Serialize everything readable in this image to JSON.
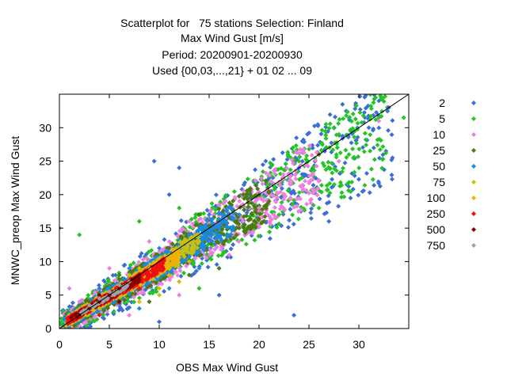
{
  "chart_data": {
    "type": "scatter",
    "title_lines": [
      "Scatterplot for   75 stations Selection: Finland",
      "Max Wind Gust [m/s]",
      "Period: 20200901-20200930",
      "Used {00,03,...,21} + 01 02 ... 09"
    ],
    "xlabel": "OBS Max Wind Gust",
    "ylabel": "MNWC_preop Max Wind Gust",
    "xlim": [
      0,
      35
    ],
    "ylim": [
      0,
      35
    ],
    "x_ticks": [
      0,
      5,
      10,
      15,
      20,
      25,
      30
    ],
    "y_ticks": [
      0,
      5,
      10,
      15,
      20,
      25,
      30
    ],
    "grid": false,
    "diagonal_line": true,
    "legend_position": "right",
    "series": [
      {
        "name": "2",
        "color": "#3b6fd6",
        "points": [
          [
            33,
            33
          ],
          [
            31,
            30
          ],
          [
            27,
            16
          ],
          [
            24,
            24
          ],
          [
            16,
            5
          ],
          [
            10,
            1
          ],
          [
            23.5,
            2
          ],
          [
            11,
            20
          ],
          [
            12,
            24
          ],
          [
            9.5,
            25
          ]
        ]
      },
      {
        "name": "5",
        "color": "#22c522",
        "points": [
          [
            34.5,
            31.5
          ],
          [
            32,
            31.5
          ],
          [
            28,
            29
          ],
          [
            24,
            25
          ],
          [
            20,
            20
          ],
          [
            17,
            13
          ],
          [
            12,
            18
          ],
          [
            8,
            16
          ],
          [
            2,
            14
          ],
          [
            0,
            15
          ],
          [
            3,
            1
          ],
          [
            14,
            6
          ],
          [
            22,
            17
          ],
          [
            26,
            18
          ],
          [
            29,
            26
          ]
        ]
      },
      {
        "name": "10",
        "color": "#ef7fe0",
        "points": [
          [
            32,
            31
          ],
          [
            28,
            25
          ],
          [
            23,
            22
          ],
          [
            20,
            18
          ],
          [
            17,
            11
          ],
          [
            13,
            16
          ],
          [
            9,
            13
          ],
          [
            5,
            9
          ],
          [
            2,
            4
          ],
          [
            1,
            6
          ],
          [
            7,
            2
          ],
          [
            12,
            5
          ],
          [
            18,
            17
          ],
          [
            26,
            22
          ]
        ]
      },
      {
        "name": "25",
        "color": "#4a7a10",
        "points": [
          [
            26,
            26
          ],
          [
            21,
            19
          ],
          [
            18,
            15
          ],
          [
            14,
            17
          ],
          [
            11,
            12
          ],
          [
            6,
            8
          ],
          [
            3,
            4
          ],
          [
            9,
            4
          ],
          [
            13,
            8
          ],
          [
            16,
            9
          ],
          [
            20,
            20
          ]
        ]
      },
      {
        "name": "50",
        "color": "#1a8ae0",
        "points": [
          [
            18,
            17
          ],
          [
            15,
            17
          ],
          [
            13,
            14
          ],
          [
            10,
            12
          ],
          [
            7,
            9
          ],
          [
            4,
            6
          ],
          [
            2,
            2
          ],
          [
            8,
            3
          ],
          [
            11,
            6
          ],
          [
            14,
            9
          ],
          [
            16,
            15
          ]
        ]
      },
      {
        "name": "75",
        "color": "#c8c010",
        "points": [
          [
            14,
            13
          ],
          [
            13,
            10
          ],
          [
            11,
            11
          ],
          [
            9,
            9
          ],
          [
            7,
            8
          ],
          [
            4,
            3
          ],
          [
            10,
            5
          ],
          [
            12,
            7
          ]
        ]
      },
      {
        "name": "100",
        "color": "#f5b000",
        "points": [
          [
            12,
            11
          ],
          [
            10,
            9
          ],
          [
            8,
            9
          ],
          [
            6,
            6
          ],
          [
            3,
            3
          ],
          [
            8,
            4
          ],
          [
            10,
            6
          ],
          [
            11,
            8
          ]
        ]
      },
      {
        "name": "250",
        "color": "#ee1010",
        "points": [
          [
            10,
            9
          ],
          [
            9,
            8
          ],
          [
            7,
            7
          ],
          [
            5,
            5
          ],
          [
            3,
            3
          ],
          [
            1.5,
            1.5
          ],
          [
            6,
            4
          ],
          [
            8,
            6
          ],
          [
            4,
            2
          ]
        ]
      },
      {
        "name": "500",
        "color": "#8a0000",
        "points": [
          [
            8,
            8
          ],
          [
            7,
            7
          ],
          [
            6,
            6
          ],
          [
            5,
            5
          ],
          [
            4,
            4
          ],
          [
            3,
            3
          ],
          [
            2,
            2
          ],
          [
            6,
            4
          ],
          [
            4,
            5
          ]
        ]
      },
      {
        "name": "750",
        "color": "#a0a0a0",
        "points": [
          [
            7,
            7
          ],
          [
            6,
            6.5
          ],
          [
            5,
            5.5
          ],
          [
            4,
            4.5
          ],
          [
            3,
            3.5
          ],
          [
            2.5,
            2.5
          ]
        ]
      }
    ]
  }
}
